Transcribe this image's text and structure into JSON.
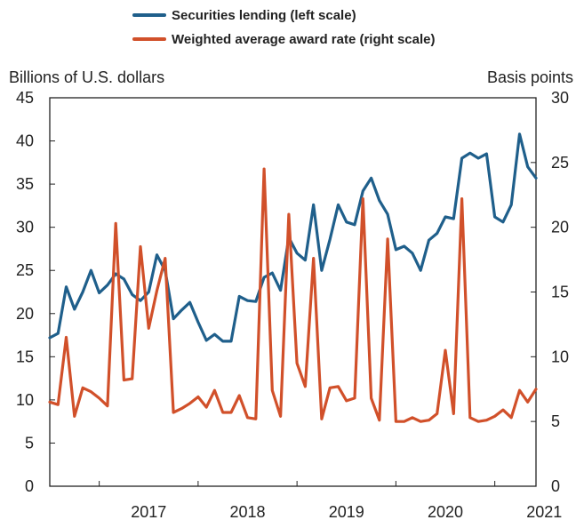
{
  "chart_data": {
    "type": "line",
    "x_label_years": [
      "2017",
      "2018",
      "2019",
      "2020",
      "2021"
    ],
    "x_range": [
      "2016-07",
      "2021-06"
    ],
    "left_axis": {
      "title": "Billions of U.S. dollars",
      "ylim": [
        0,
        45
      ],
      "ticks": [
        "0",
        "5",
        "10",
        "15",
        "20",
        "25",
        "30",
        "35",
        "40",
        "45"
      ]
    },
    "right_axis": {
      "title": "Basis points",
      "ylim": [
        0,
        30
      ],
      "ticks": [
        "0",
        "5",
        "10",
        "15",
        "20",
        "25",
        "30"
      ]
    },
    "legend_position": "top-center",
    "grid": false,
    "series": [
      {
        "name": "Securities lending (left scale)",
        "axis": "left",
        "color": "#1f5f8b",
        "points": [
          [
            "2016-07",
            17.2
          ],
          [
            "2016-08",
            17.7
          ],
          [
            "2016-09",
            23.1
          ],
          [
            "2016-10",
            20.5
          ],
          [
            "2016-11",
            22.5
          ],
          [
            "2016-12",
            25.0
          ],
          [
            "2017-01",
            22.4
          ],
          [
            "2017-02",
            23.3
          ],
          [
            "2017-03",
            24.6
          ],
          [
            "2017-04",
            24.0
          ],
          [
            "2017-05",
            22.2
          ],
          [
            "2017-06",
            21.5
          ],
          [
            "2017-07",
            22.5
          ],
          [
            "2017-08",
            26.8
          ],
          [
            "2017-09",
            25.0
          ],
          [
            "2017-10",
            19.4
          ],
          [
            "2017-11",
            20.4
          ],
          [
            "2017-12",
            21.3
          ],
          [
            "2018-01",
            19.0
          ],
          [
            "2018-02",
            16.9
          ],
          [
            "2018-03",
            17.6
          ],
          [
            "2018-04",
            16.8
          ],
          [
            "2018-05",
            16.8
          ],
          [
            "2018-06",
            22.0
          ],
          [
            "2018-07",
            21.5
          ],
          [
            "2018-08",
            21.4
          ],
          [
            "2018-09",
            24.2
          ],
          [
            "2018-10",
            24.7
          ],
          [
            "2018-11",
            22.7
          ],
          [
            "2018-12",
            28.8
          ],
          [
            "2019-01",
            27.0
          ],
          [
            "2019-02",
            26.2
          ],
          [
            "2019-03",
            32.6
          ],
          [
            "2019-04",
            25.0
          ],
          [
            "2019-05",
            28.6
          ],
          [
            "2019-06",
            32.6
          ],
          [
            "2019-07",
            30.6
          ],
          [
            "2019-08",
            30.3
          ],
          [
            "2019-09",
            34.2
          ],
          [
            "2019-10",
            35.7
          ],
          [
            "2019-11",
            33.1
          ],
          [
            "2019-12",
            31.5
          ],
          [
            "2020-01",
            27.4
          ],
          [
            "2020-02",
            27.8
          ],
          [
            "2020-03",
            27.0
          ],
          [
            "2020-04",
            25.0
          ],
          [
            "2020-05",
            28.5
          ],
          [
            "2020-06",
            29.3
          ],
          [
            "2020-07",
            31.2
          ],
          [
            "2020-08",
            31.0
          ],
          [
            "2020-09",
            38.0
          ],
          [
            "2020-10",
            38.6
          ],
          [
            "2020-11",
            38.0
          ],
          [
            "2020-12",
            38.5
          ],
          [
            "2021-01",
            31.2
          ],
          [
            "2021-02",
            30.6
          ],
          [
            "2021-03",
            32.6
          ],
          [
            "2021-04",
            40.8
          ],
          [
            "2021-05",
            37.0
          ],
          [
            "2021-06",
            35.7
          ]
        ]
      },
      {
        "name": "Weighted average award rate (right scale)",
        "axis": "right",
        "color": "#d1502a",
        "points": [
          [
            "2016-07",
            6.5
          ],
          [
            "2016-08",
            6.3
          ],
          [
            "2016-09",
            11.5
          ],
          [
            "2016-10",
            5.4
          ],
          [
            "2016-11",
            7.6
          ],
          [
            "2016-12",
            7.3
          ],
          [
            "2017-01",
            6.8
          ],
          [
            "2017-02",
            6.2
          ],
          [
            "2017-03",
            20.3
          ],
          [
            "2017-04",
            8.2
          ],
          [
            "2017-05",
            8.3
          ],
          [
            "2017-06",
            18.5
          ],
          [
            "2017-07",
            12.2
          ],
          [
            "2017-08",
            15.1
          ],
          [
            "2017-09",
            17.6
          ],
          [
            "2017-10",
            5.7
          ],
          [
            "2017-11",
            6.0
          ],
          [
            "2017-12",
            6.4
          ],
          [
            "2018-01",
            6.9
          ],
          [
            "2018-02",
            6.1
          ],
          [
            "2018-03",
            7.4
          ],
          [
            "2018-04",
            5.7
          ],
          [
            "2018-05",
            5.7
          ],
          [
            "2018-06",
            7.0
          ],
          [
            "2018-07",
            5.3
          ],
          [
            "2018-08",
            5.2
          ],
          [
            "2018-09",
            24.5
          ],
          [
            "2018-10",
            7.4
          ],
          [
            "2018-11",
            5.4
          ],
          [
            "2018-12",
            21.0
          ],
          [
            "2019-01",
            9.5
          ],
          [
            "2019-02",
            7.7
          ],
          [
            "2019-03",
            17.6
          ],
          [
            "2019-04",
            5.2
          ],
          [
            "2019-05",
            7.6
          ],
          [
            "2019-06",
            7.7
          ],
          [
            "2019-07",
            6.6
          ],
          [
            "2019-08",
            6.8
          ],
          [
            "2019-09",
            22.2
          ],
          [
            "2019-10",
            6.8
          ],
          [
            "2019-11",
            5.1
          ],
          [
            "2019-12",
            19.1
          ],
          [
            "2020-01",
            5.0
          ],
          [
            "2020-02",
            5.0
          ],
          [
            "2020-03",
            5.3
          ],
          [
            "2020-04",
            5.0
          ],
          [
            "2020-05",
            5.1
          ],
          [
            "2020-06",
            5.6
          ],
          [
            "2020-07",
            10.5
          ],
          [
            "2020-08",
            5.6
          ],
          [
            "2020-09",
            22.2
          ],
          [
            "2020-10",
            5.3
          ],
          [
            "2020-11",
            5.0
          ],
          [
            "2020-12",
            5.1
          ],
          [
            "2021-01",
            5.4
          ],
          [
            "2021-02",
            5.9
          ],
          [
            "2021-03",
            5.3
          ],
          [
            "2021-04",
            7.4
          ],
          [
            "2021-05",
            6.5
          ],
          [
            "2021-06",
            7.5
          ]
        ]
      }
    ]
  }
}
